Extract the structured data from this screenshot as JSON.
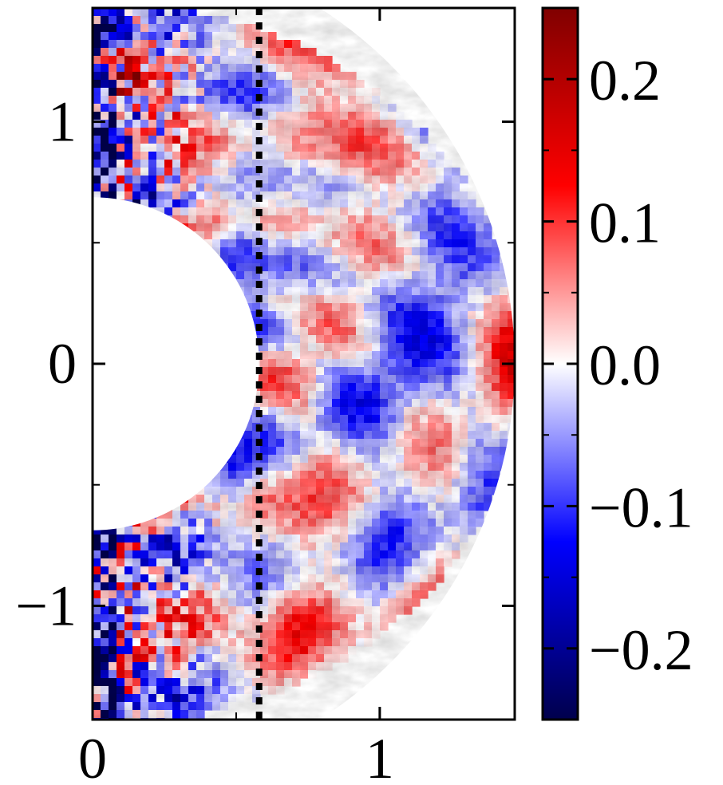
{
  "chart_data": {
    "type": "heatmap",
    "title": "",
    "xlabel": "",
    "ylabel": "",
    "geometry": "half-annulus (meridional plane)",
    "r_inner": 0.58,
    "r_outer": 1.47,
    "xlim": [
      0,
      1.47
    ],
    "ylim": [
      -1.47,
      1.47
    ],
    "x_ticks": [
      {
        "value": 0,
        "label": "0"
      },
      {
        "value": 1,
        "label": "1"
      }
    ],
    "x_minor_ticks": [
      0.5
    ],
    "y_ticks": [
      {
        "value": 1,
        "label": "1"
      },
      {
        "value": 0,
        "label": "0"
      },
      {
        "value": -1,
        "label": "−1"
      }
    ],
    "y_minor_ticks": [
      -0.5,
      0.5
    ],
    "reference_line": {
      "orientation": "vertical",
      "x": 0.58,
      "style": "dotted",
      "color": "#000000"
    },
    "colormap": "seismic (blue-white-red)",
    "colormap_stops": [
      "#00004c",
      "#0000ff",
      "#ffffff",
      "#ff0000",
      "#800000"
    ],
    "color_range": [
      -0.25,
      0.25
    ],
    "colorbar_ticks": [
      {
        "value": 0.2,
        "label": "0.2"
      },
      {
        "value": 0.1,
        "label": "0.1"
      },
      {
        "value": 0.0,
        "label": "0.0"
      },
      {
        "value": -0.1,
        "label": "−0.1"
      },
      {
        "value": -0.2,
        "label": "−0.2"
      }
    ],
    "colorbar_minor_ticks": [
      0.15,
      0.05,
      -0.05,
      -0.15
    ],
    "grid": false
  }
}
